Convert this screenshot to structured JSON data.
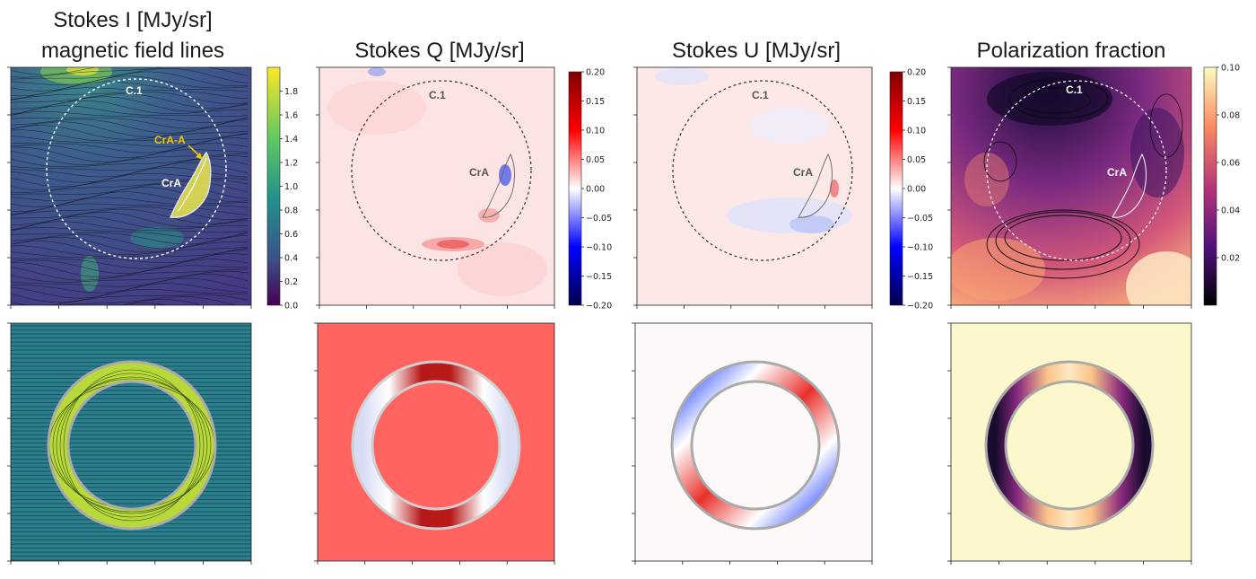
{
  "figure": {
    "panel_titles": [
      [
        "Stokes I [MJy/sr]",
        "magnetic field lines"
      ],
      [
        "Stokes Q [MJy/sr]"
      ],
      [
        "Stokes U [MJy/sr]"
      ],
      [
        "Polarization fraction"
      ]
    ],
    "annotations": {
      "cloud": "C.1",
      "crA": "CrA",
      "crA_a": "CrA-A"
    }
  },
  "chart_data": [
    {
      "type": "heatmap",
      "title": "Stokes I [MJy/sr] magnetic field lines",
      "colormap": "viridis",
      "colorbar": {
        "ticks": [
          0.0,
          0.2,
          0.4,
          0.6,
          0.8,
          1.0,
          1.2,
          1.4,
          1.6,
          1.8
        ],
        "range": [
          0.0,
          2.0
        ]
      },
      "overlays": [
        "field-line texture",
        "dashed circle C.1",
        "white contours CrA"
      ],
      "labels": [
        "C.1",
        "CrA-A",
        "CrA"
      ]
    },
    {
      "type": "heatmap",
      "title": "Stokes Q [MJy/sr]",
      "colormap": "seismic",
      "colorbar": {
        "ticks": [
          0.2,
          0.15,
          0.1,
          0.05,
          0.0,
          -0.05,
          -0.1,
          -0.15,
          -0.2
        ],
        "range": [
          -0.2,
          0.2
        ]
      },
      "labels": [
        "C.1",
        "CrA"
      ]
    },
    {
      "type": "heatmap",
      "title": "Stokes U [MJy/sr]",
      "colormap": "seismic",
      "colorbar": {
        "ticks": [
          0.2,
          0.15,
          0.1,
          0.05,
          0.0,
          -0.05,
          -0.1,
          -0.15,
          -0.2
        ],
        "range": [
          -0.2,
          0.2
        ]
      },
      "labels": [
        "C.1",
        "CrA"
      ]
    },
    {
      "type": "heatmap",
      "title": "Polarization fraction",
      "colormap": "magma",
      "colorbar": {
        "ticks": [
          0.1,
          0.08,
          0.06,
          0.04,
          0.02
        ],
        "range": [
          0.0,
          0.1
        ]
      },
      "overlays": [
        "black contours",
        "dashed circle C.1"
      ],
      "labels": [
        "C.1",
        "CrA"
      ]
    },
    {
      "type": "heatmap",
      "title": "",
      "description_model": "Stokes I ring model with horizontal field lines"
    },
    {
      "type": "heatmap",
      "title": "",
      "description_model": "Stokes Q ring model"
    },
    {
      "type": "heatmap",
      "title": "",
      "description_model": "Stokes U ring model"
    },
    {
      "type": "heatmap",
      "title": "",
      "description_model": "Polarization fraction ring model"
    }
  ]
}
